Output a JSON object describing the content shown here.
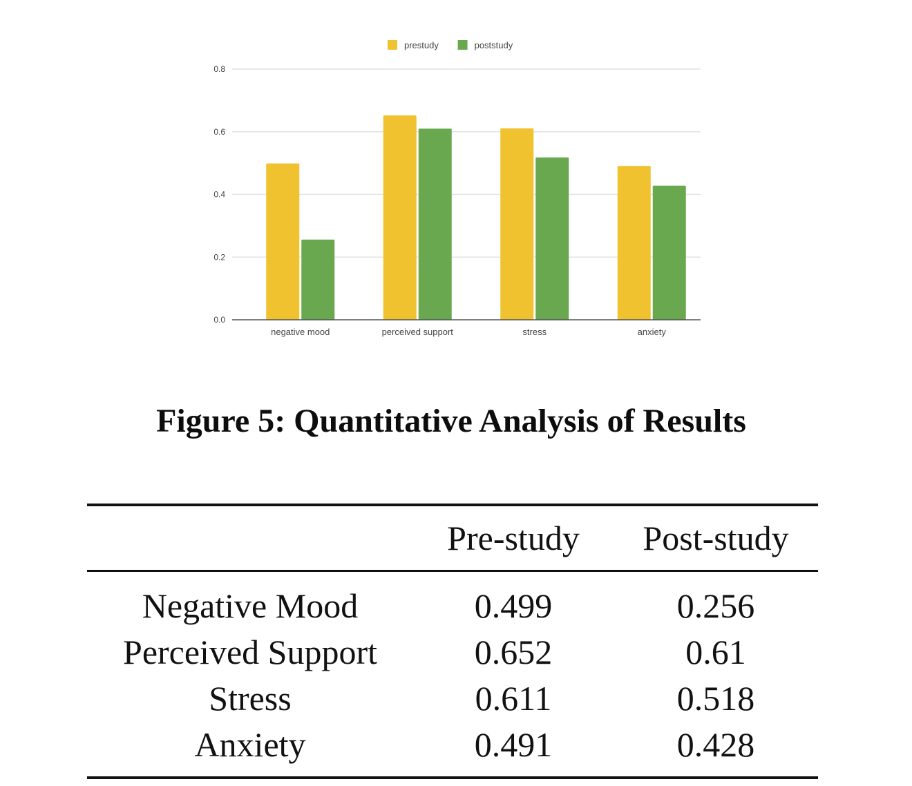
{
  "chart_data": {
    "type": "bar",
    "title": "",
    "xlabel": "",
    "ylabel": "",
    "categories": [
      "negative mood",
      "perceived support",
      "stress",
      "anxiety"
    ],
    "series": [
      {
        "name": "prestudy",
        "color": "#f0c230",
        "values": [
          0.499,
          0.652,
          0.611,
          0.491
        ]
      },
      {
        "name": "poststudy",
        "color": "#69a84f",
        "values": [
          0.256,
          0.61,
          0.518,
          0.428
        ]
      }
    ],
    "ylim": [
      0,
      0.8
    ],
    "yticks": [
      "0.0",
      "0.2",
      "0.4",
      "0.6",
      "0.8"
    ],
    "grid": true,
    "legend_position": "top-center"
  },
  "figure": {
    "caption": "Figure 5: Quantitative Analysis of Results"
  },
  "table": {
    "headers": [
      "",
      "Pre-study",
      "Post-study"
    ],
    "rows": [
      {
        "label": "Negative Mood",
        "pre": "0.499",
        "post": "0.256"
      },
      {
        "label": "Perceived Support",
        "pre": "0.652",
        "post": "0.61"
      },
      {
        "label": "Stress",
        "pre": "0.611",
        "post": "0.518"
      },
      {
        "label": "Anxiety",
        "pre": "0.491",
        "post": "0.428"
      }
    ]
  }
}
